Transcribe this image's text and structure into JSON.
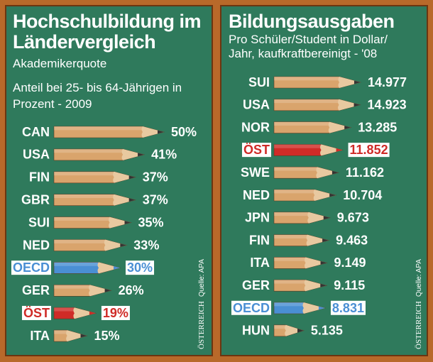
{
  "chart_data": [
    {
      "type": "bar",
      "orientation": "horizontal",
      "title": "Hochschulbildung im Ländervergleich",
      "subtitle": "Akademikerquote",
      "note": "Anteil bei 25- bis 64-Jährigen in Prozent - 2009",
      "categories": [
        "CAN",
        "USA",
        "FIN",
        "GBR",
        "SUI",
        "NED",
        "OECD",
        "GER",
        "ÖST",
        "ITA"
      ],
      "values": [
        50,
        41,
        37,
        37,
        35,
        33,
        30,
        26,
        19,
        15
      ],
      "value_labels": [
        "50%",
        "41%",
        "37%",
        "37%",
        "35%",
        "33%",
        "30%",
        "26%",
        "19%",
        "15%"
      ],
      "pencil_color": "#d9a46c",
      "colors": [
        "#d9a46c",
        "#d9a46c",
        "#d9a46c",
        "#d9a46c",
        "#d9a46c",
        "#d9a46c",
        "#4a8fd4",
        "#d9a46c",
        "#cf2b27",
        "#d9a46c"
      ],
      "brand": "ÖSTERREICH",
      "source": "Quelle: APA"
    },
    {
      "type": "bar",
      "orientation": "horizontal",
      "title": "Bildungsausgaben",
      "subtitle": "Pro Schüler/Student in Dollar/ Jahr, kaufkraftbereinigt - '08",
      "categories": [
        "SUI",
        "USA",
        "NOR",
        "ÖST",
        "SWE",
        "NED",
        "JPN",
        "FIN",
        "ITA",
        "GER",
        "OECD",
        "HUN"
      ],
      "values": [
        14977,
        14923,
        13285,
        11852,
        11162,
        10704,
        9673,
        9463,
        9149,
        9115,
        8831,
        5135
      ],
      "value_labels": [
        "14.977",
        "14.923",
        "13.285",
        "11.852",
        "11.162",
        "10.704",
        "9.673",
        "9.463",
        "9.149",
        "9.115",
        "8.831",
        "5.135"
      ],
      "pencil_color": "#d9a46c",
      "colors": [
        "#d9a46c",
        "#d9a46c",
        "#d9a46c",
        "#cf2b27",
        "#d9a46c",
        "#d9a46c",
        "#d9a46c",
        "#d9a46c",
        "#d9a46c",
        "#d9a46c",
        "#4a8fd4",
        "#d9a46c"
      ],
      "brand": "ÖSTERREICH",
      "source": "Quelle: APA"
    }
  ]
}
